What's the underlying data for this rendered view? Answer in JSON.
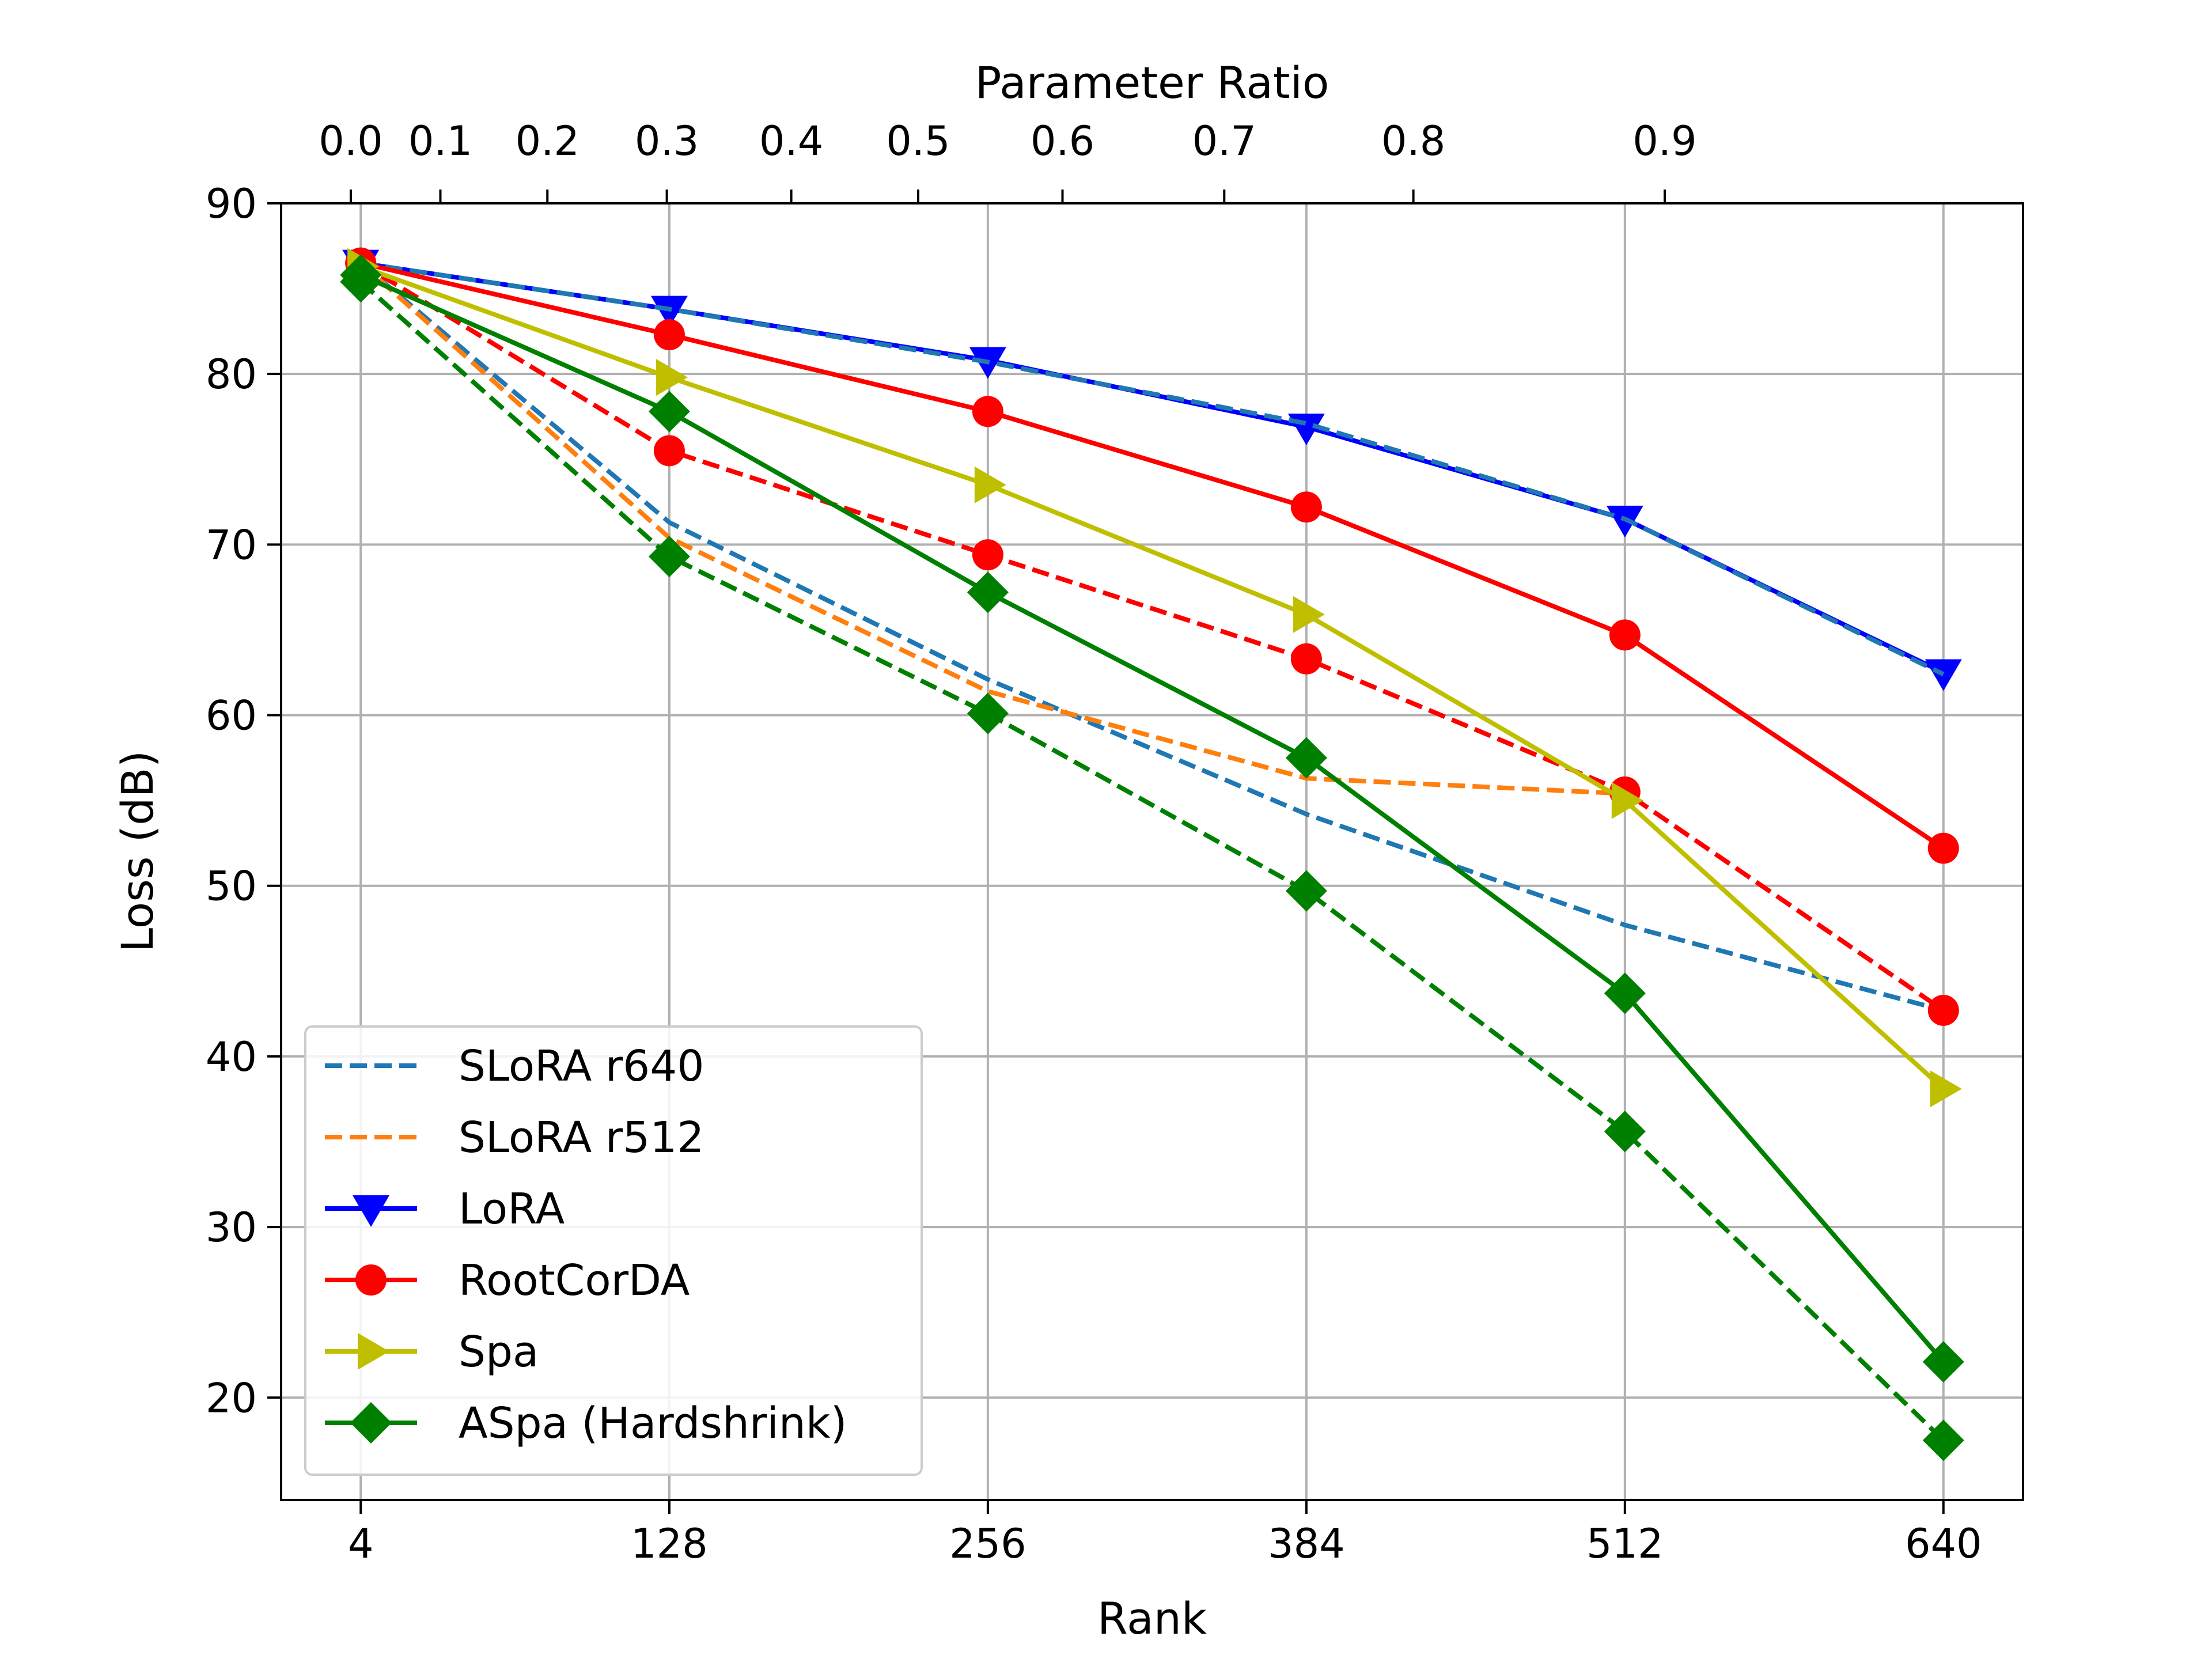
{
  "chart_data": {
    "type": "line",
    "xlabel": "Rank",
    "ylabel": "Loss (dB)",
    "top_xlabel": "Parameter Ratio",
    "x_ticks": [
      4,
      128,
      256,
      384,
      512,
      640
    ],
    "x_tick_labels": [
      "4",
      "128",
      "256",
      "384",
      "512",
      "640"
    ],
    "xlim": [
      -28,
      672
    ],
    "ylim": [
      14,
      90
    ],
    "y_ticks": [
      20,
      30,
      40,
      50,
      60,
      70,
      80,
      90
    ],
    "y_tick_labels": [
      "20",
      "30",
      "40",
      "50",
      "60",
      "70",
      "80",
      "90"
    ],
    "top_ticks": [
      {
        "label": "0.0",
        "rank": 0
      },
      {
        "label": "0.1",
        "rank": 36
      },
      {
        "label": "0.2",
        "rank": 79
      },
      {
        "label": "0.3",
        "rank": 127
      },
      {
        "label": "0.4",
        "rank": 177
      },
      {
        "label": "0.5",
        "rank": 228
      },
      {
        "label": "0.6",
        "rank": 286
      },
      {
        "label": "0.7",
        "rank": 351
      },
      {
        "label": "0.8",
        "rank": 427
      },
      {
        "label": "0.9",
        "rank": 528
      }
    ],
    "grid": true,
    "legend_position": "bottom-left",
    "x": [
      4,
      128,
      256,
      384,
      512,
      640
    ],
    "series": [
      {
        "name": "SLoRA r640",
        "color": "#1f77b4",
        "dash": true,
        "marker": "none",
        "values": [
          86.5,
          71.3,
          62.1,
          54.2,
          47.7,
          42.7
        ]
      },
      {
        "name": "SLoRA r512",
        "color": "#ff7f0e",
        "dash": true,
        "marker": "none",
        "values": [
          86.5,
          70.4,
          61.4,
          56.3,
          55.4,
          null
        ]
      },
      {
        "name": "LoRA",
        "color": "#0000ff",
        "dash": false,
        "marker": "triangle-down",
        "values": [
          86.5,
          83.8,
          80.8,
          76.9,
          71.5,
          62.5
        ]
      },
      {
        "name": "",
        "color": "#1f77b4",
        "dash": true,
        "marker": "none",
        "legend": false,
        "values": [
          86.5,
          83.8,
          80.7,
          77.1,
          71.5,
          62.4
        ]
      },
      {
        "name": "RootCorDA",
        "color": "#ff0000",
        "dash": false,
        "marker": "circle",
        "values": [
          86.5,
          82.3,
          77.8,
          72.2,
          64.7,
          52.2
        ]
      },
      {
        "name": "",
        "color": "#ff0000",
        "dash": true,
        "marker": "circle",
        "legend": false,
        "values": [
          86.5,
          75.5,
          69.4,
          63.3,
          55.5,
          42.7
        ]
      },
      {
        "name": "Spa",
        "color": "#bfbf00",
        "dash": false,
        "marker": "triangle-right",
        "values": [
          86.3,
          79.8,
          73.5,
          65.9,
          55.0,
          38.1
        ]
      },
      {
        "name": "ASpa (Hardshrink)",
        "color": "#008000",
        "dash": false,
        "marker": "diamond",
        "values": [
          85.8,
          77.8,
          67.2,
          57.5,
          43.7,
          22.1
        ]
      },
      {
        "name": "",
        "color": "#008000",
        "dash": true,
        "marker": "diamond",
        "legend": false,
        "values": [
          85.4,
          69.3,
          60.1,
          49.7,
          35.6,
          17.5
        ]
      }
    ]
  }
}
